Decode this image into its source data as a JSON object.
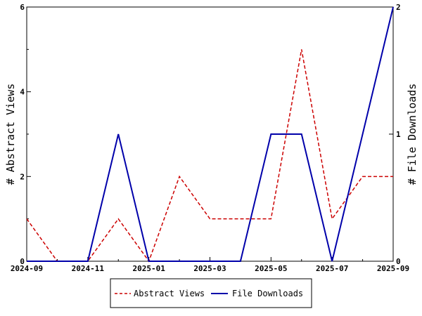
{
  "chart_data": {
    "type": "line",
    "title": "",
    "x": [
      "2024-09",
      "2024-10",
      "2024-11",
      "2024-12",
      "2025-01",
      "2025-02",
      "2025-03",
      "2025-04",
      "2025-05",
      "2025-06",
      "2025-07",
      "2025-08",
      "2025-09"
    ],
    "x_tick_labels": [
      "2024-09",
      "2024-11",
      "2025-01",
      "2025-03",
      "2025-05",
      "2025-07",
      "2025-09"
    ],
    "ylabel_left": "# Abstract Views",
    "ylabel_right": "# File Downloads",
    "ylim_left": [
      0,
      6
    ],
    "ylim_right": [
      0,
      2
    ],
    "yticks_left": [
      "0",
      "2",
      "4",
      "6"
    ],
    "yticks_right": [
      "0",
      "1",
      "2"
    ],
    "grid": false,
    "legend_position": "bottom",
    "series": [
      {
        "name": "Abstract Views",
        "axis": "left",
        "color": "#cc0000",
        "style": "dashed",
        "values": [
          1,
          0,
          0,
          1,
          0,
          2,
          1,
          1,
          1,
          5,
          1,
          2,
          2
        ]
      },
      {
        "name": "File Downloads",
        "axis": "right",
        "color": "#0000aa",
        "style": "solid",
        "values": [
          0,
          0,
          0,
          1,
          0,
          0,
          0,
          0,
          1,
          1,
          0,
          1,
          2
        ]
      }
    ]
  }
}
